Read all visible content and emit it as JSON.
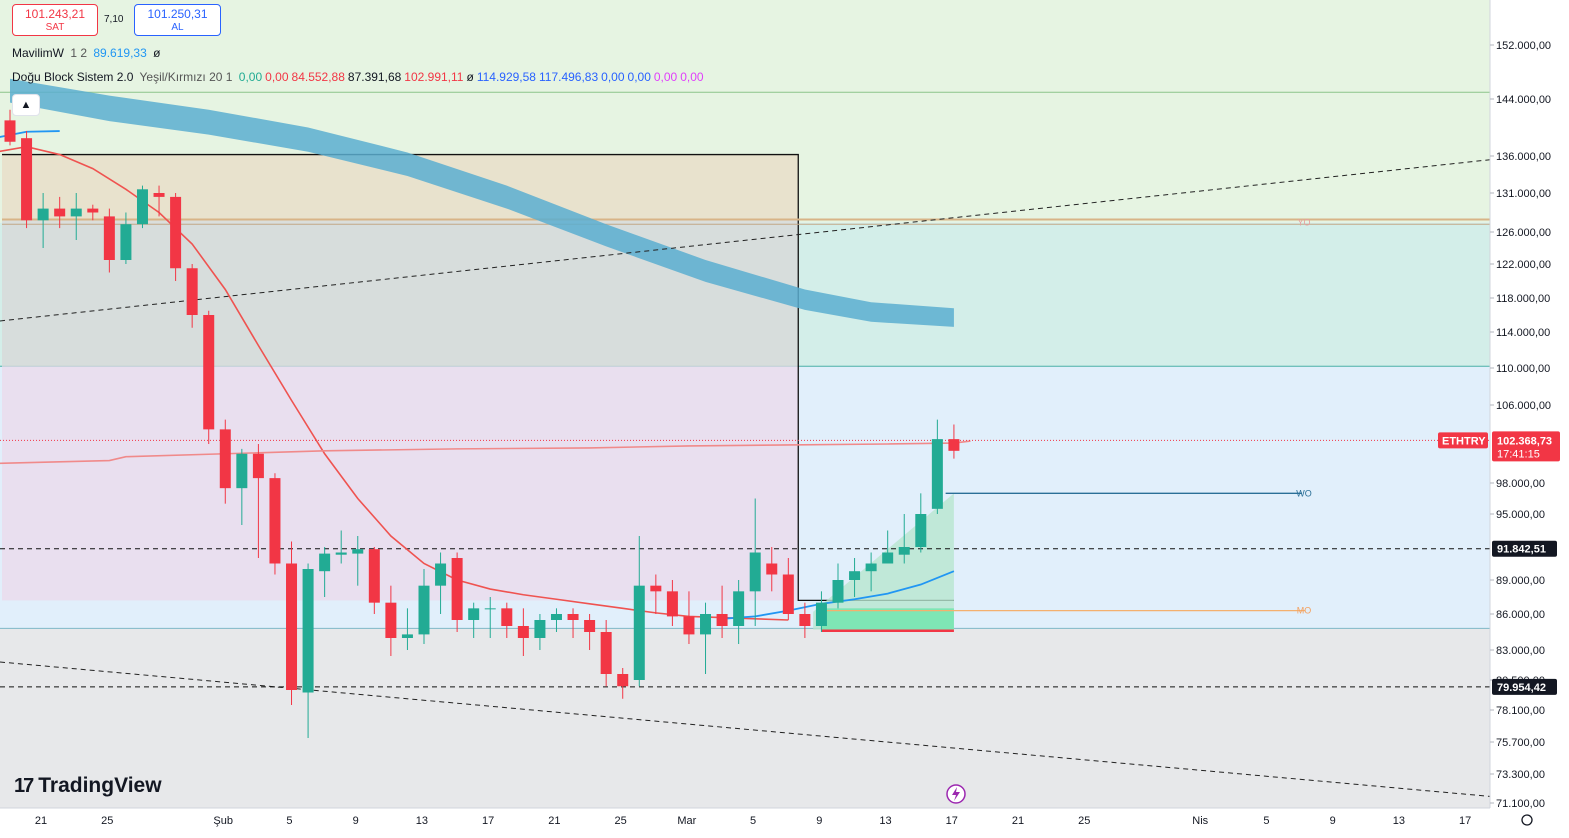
{
  "header": {
    "sell_price": "101.243,21",
    "sell_label": "SAT",
    "spread": "7,10",
    "buy_price": "101.250,31",
    "buy_label": "AL"
  },
  "legend": {
    "mavilim": {
      "name": "MavilimW",
      "params": "1 2",
      "value": "89.619,33",
      "symbol": "ø"
    },
    "dogu": {
      "name": "Doğu Block Sistem 2.0",
      "params": "Yeşil/Kırmızı 20 1",
      "values": [
        {
          "text": "0,00",
          "color": "#22ab94"
        },
        {
          "text": "0,00",
          "color": "#f23645"
        },
        {
          "text": "84.552,88",
          "color": "#f23645"
        },
        {
          "text": "87.391,68",
          "color": "#131722"
        },
        {
          "text": "102.991,11",
          "color": "#f23645"
        },
        {
          "text": "ø",
          "color": "#131722"
        },
        {
          "text": "114.929,58",
          "color": "#2962ff"
        },
        {
          "text": "117.496,83",
          "color": "#2962ff"
        },
        {
          "text": "0,00",
          "color": "#2962ff"
        },
        {
          "text": "0,00",
          "color": "#2962ff"
        },
        {
          "text": "0,00",
          "color": "#e040fb"
        },
        {
          "text": "0,00",
          "color": "#e040fb"
        }
      ]
    }
  },
  "collapse_icon": "chevron-up-icon",
  "logo_text": "TradingView",
  "colors": {
    "up": "#22ab94",
    "down": "#f23645",
    "blue": "#2196f3",
    "red_line": "#ef5350"
  },
  "chart_data": {
    "type": "candlestick",
    "symbol": "ETHTRY",
    "last_price": "102.368,73",
    "countdown": "17:41:15",
    "y_axis_labels": [
      {
        "value": 152000,
        "text": "152.000,00"
      },
      {
        "value": 144000,
        "text": "144.000,00"
      },
      {
        "value": 136000,
        "text": "136.000,00"
      },
      {
        "value": 131000,
        "text": "131.000,00"
      },
      {
        "value": 126000,
        "text": "126.000,00"
      },
      {
        "value": 122000,
        "text": "122.000,00"
      },
      {
        "value": 118000,
        "text": "118.000,00"
      },
      {
        "value": 114000,
        "text": "114.000,00"
      },
      {
        "value": 110000,
        "text": "110.000,00"
      },
      {
        "value": 106000,
        "text": "106.000,00"
      },
      {
        "value": 98000,
        "text": "98.000,00"
      },
      {
        "value": 95000,
        "text": "95.000,00"
      },
      {
        "value": 89000,
        "text": "89.000,00"
      },
      {
        "value": 86000,
        "text": "86.000,00"
      },
      {
        "value": 83000,
        "text": "83.000,00"
      },
      {
        "value": 80500,
        "text": "80.500,00"
      },
      {
        "value": 78100,
        "text": "78.100,00"
      },
      {
        "value": 75700,
        "text": "75.700,00"
      },
      {
        "value": 73300,
        "text": "73.300,00"
      },
      {
        "value": 71100,
        "text": "71.100,00"
      }
    ],
    "price_tags": [
      {
        "value": 91842.51,
        "text": "91.842,51"
      },
      {
        "value": 79954.42,
        "text": "79.954,42"
      }
    ],
    "x_axis_labels": [
      {
        "day": 0,
        "text": "21"
      },
      {
        "day": 4,
        "text": "25"
      },
      {
        "day": 11,
        "text": "Şub"
      },
      {
        "day": 15,
        "text": "5"
      },
      {
        "day": 19,
        "text": "9"
      },
      {
        "day": 23,
        "text": "13"
      },
      {
        "day": 27,
        "text": "17"
      },
      {
        "day": 31,
        "text": "21"
      },
      {
        "day": 35,
        "text": "25"
      },
      {
        "day": 39,
        "text": "Mar"
      },
      {
        "day": 43,
        "text": "5"
      },
      {
        "day": 47,
        "text": "9"
      },
      {
        "day": 51,
        "text": "13"
      },
      {
        "day": 55,
        "text": "17"
      },
      {
        "day": 59,
        "text": "21"
      },
      {
        "day": 63,
        "text": "25"
      },
      {
        "day": 70,
        "text": "Nis"
      },
      {
        "day": 74,
        "text": "5"
      },
      {
        "day": 78,
        "text": "9"
      },
      {
        "day": 82,
        "text": "13"
      },
      {
        "day": 86,
        "text": "17"
      }
    ],
    "candles": [
      [
        141000,
        142500,
        137500,
        138000
      ],
      [
        138500,
        139500,
        126500,
        127500
      ],
      [
        127500,
        131000,
        124000,
        129000
      ],
      [
        129000,
        130500,
        126500,
        128000
      ],
      [
        128000,
        131000,
        125000,
        129000
      ],
      [
        129000,
        129500,
        127500,
        128500
      ],
      [
        128000,
        129000,
        121000,
        122500
      ],
      [
        122500,
        128500,
        122000,
        127000
      ],
      [
        127000,
        132000,
        126500,
        131500
      ],
      [
        131000,
        132000,
        128000,
        130500
      ],
      [
        130500,
        131000,
        120000,
        121500
      ],
      [
        121500,
        122000,
        114500,
        116000
      ],
      [
        116000,
        116500,
        102000,
        103500
      ],
      [
        103500,
        104500,
        96000,
        97500
      ],
      [
        97500,
        101500,
        94000,
        101000
      ],
      [
        101000,
        102000,
        91000,
        98500
      ],
      [
        98500,
        99000,
        89500,
        90500
      ],
      [
        90500,
        92500,
        78500,
        79700
      ],
      [
        79500,
        90500,
        76000,
        90000
      ],
      [
        89800,
        92000,
        87500,
        91400
      ],
      [
        91300,
        93500,
        90500,
        91500
      ],
      [
        91400,
        93000,
        88500,
        91800
      ],
      [
        91800,
        92000,
        86000,
        87000
      ],
      [
        87000,
        88500,
        82500,
        84000
      ],
      [
        84000,
        86500,
        83000,
        84300
      ],
      [
        84300,
        90000,
        83500,
        88500
      ],
      [
        88500,
        91500,
        86000,
        90500
      ],
      [
        91000,
        91500,
        84500,
        85500
      ],
      [
        85500,
        87000,
        84000,
        86500
      ],
      [
        86500,
        87500,
        84000,
        86500
      ],
      [
        86500,
        87000,
        84000,
        85000
      ],
      [
        85000,
        86500,
        82500,
        84000
      ],
      [
        84000,
        86000,
        83000,
        85500
      ],
      [
        85500,
        86500,
        84500,
        86000
      ],
      [
        86000,
        86500,
        84000,
        85500
      ],
      [
        85500,
        86000,
        83000,
        84500
      ],
      [
        84500,
        85500,
        80000,
        81000
      ],
      [
        81000,
        81500,
        79000,
        80000
      ],
      [
        80500,
        93000,
        80000,
        88500
      ],
      [
        88500,
        89500,
        86000,
        88000
      ],
      [
        88000,
        89000,
        85000,
        85800
      ],
      [
        85800,
        88000,
        83500,
        84300
      ],
      [
        84300,
        87000,
        81000,
        86000
      ],
      [
        86000,
        88500,
        84000,
        85000
      ],
      [
        85000,
        89000,
        83500,
        88000
      ],
      [
        88000,
        96500,
        85000,
        91500
      ],
      [
        90500,
        92000,
        88000,
        89500
      ],
      [
        89500,
        91000,
        85500,
        86000
      ],
      [
        86000,
        87000,
        84000,
        85000
      ],
      [
        85000,
        88000,
        84500,
        87000
      ],
      [
        87000,
        90500,
        86500,
        89000
      ],
      [
        89000,
        91000,
        87500,
        89800
      ],
      [
        89800,
        91500,
        88000,
        90500
      ],
      [
        90500,
        93500,
        90500,
        91500
      ],
      [
        91300,
        95000,
        90500,
        92000
      ],
      [
        92000,
        97000,
        91500,
        95000
      ],
      [
        95500,
        104500,
        95000,
        102500
      ],
      [
        102500,
        104000,
        100500,
        101300
      ]
    ],
    "levels": [
      {
        "label": "YO",
        "value": 127200
      },
      {
        "label": "WO",
        "value": 97000
      },
      {
        "label": "MO",
        "value": 86300
      }
    ]
  }
}
